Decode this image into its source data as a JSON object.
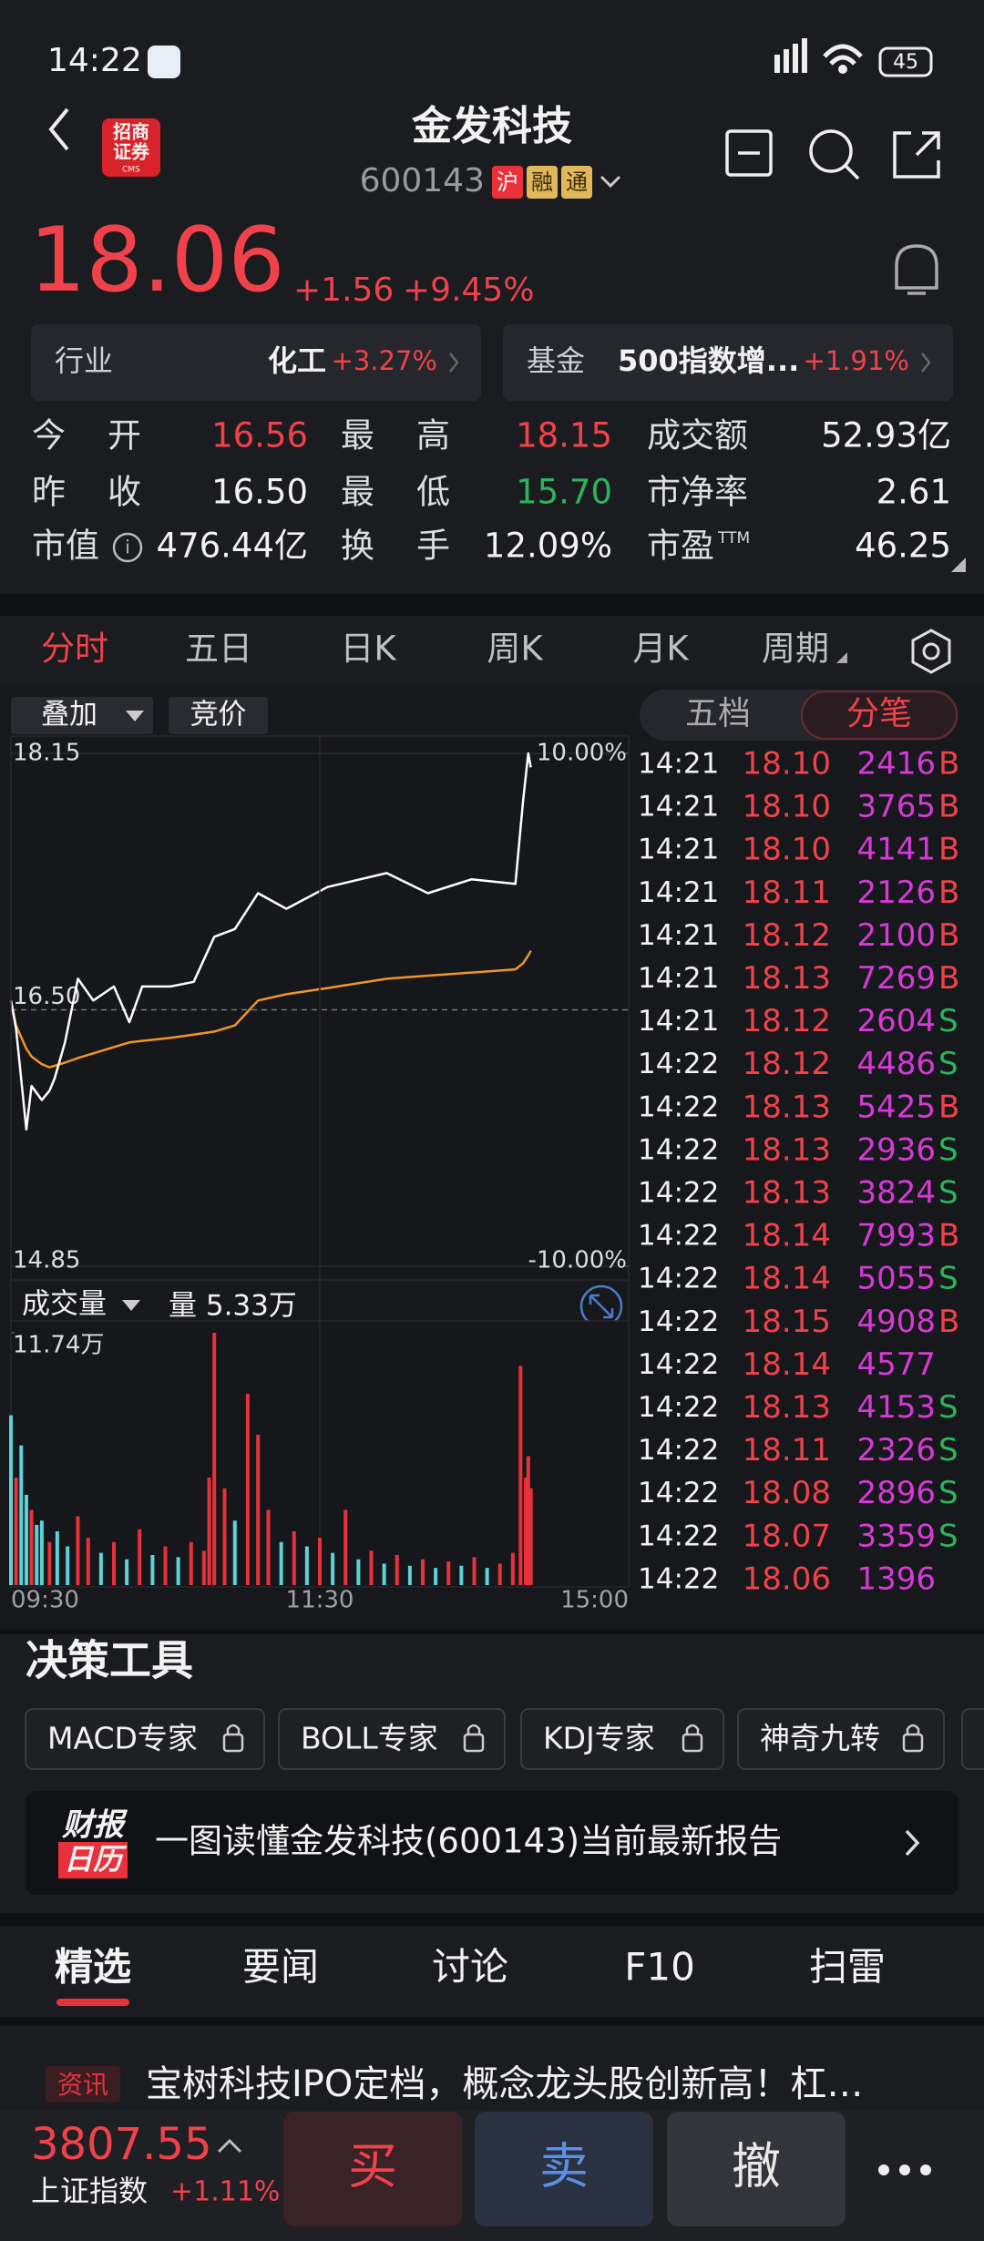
{
  "status_bar": {
    "time": "14:22",
    "battery": "45"
  },
  "header": {
    "broker_logo": [
      "招商",
      "证券"
    ],
    "broker_logo_sub": "CMS",
    "title": "金发科技",
    "code": "600143",
    "tags": [
      "沪",
      "融",
      "通"
    ]
  },
  "quote": {
    "price": "18.06",
    "change": "+1.56",
    "change_pct": "+9.45%"
  },
  "sectors": [
    {
      "label": "行业",
      "name": "化工",
      "change": "+3.27%"
    },
    {
      "label": "基金",
      "name": "500指数增...",
      "change": "+1.91%"
    }
  ],
  "stats": [
    [
      {
        "label": "今 开",
        "value": "16.56",
        "color": "#f0424a"
      },
      {
        "label": "最 高",
        "value": "18.15",
        "color": "#f0424a"
      },
      {
        "label": "成交额",
        "value": "52.93亿",
        "color": "#f2f2f2"
      }
    ],
    [
      {
        "label": "昨 收",
        "value": "16.50",
        "color": "#f2f2f2"
      },
      {
        "label": "最 低",
        "value": "15.70",
        "color": "#2bb55a"
      },
      {
        "label": "市净率",
        "value": "2.61",
        "color": "#f2f2f2"
      }
    ],
    [
      {
        "label": "市值",
        "value": "476.44亿",
        "color": "#f2f2f2"
      },
      {
        "label": "换 手",
        "value": "12.09%",
        "color": "#f2f2f2"
      },
      {
        "label": "市盈",
        "sup": "TTM",
        "value": "46.25",
        "color": "#f2f2f2"
      }
    ]
  ],
  "chart_tabs": [
    "分时",
    "五日",
    "日K",
    "周K",
    "月K",
    "周期"
  ],
  "chart_controls": [
    "叠加",
    "竞价"
  ],
  "trade_tabs": [
    "五档",
    "分笔"
  ],
  "chart_data": [
    {
      "type": "line",
      "x": [
        0,
        2,
        6,
        8,
        12,
        15,
        17,
        21,
        26,
        32,
        40,
        46,
        51,
        62,
        71,
        79,
        87,
        96,
        107,
        123,
        146,
        162,
        179,
        196,
        199,
        201,
        202
      ],
      "series": [
        {
          "color": "#ffffff",
          "values": [
            16.56,
            16.38,
            15.73,
            16.01,
            15.92,
            15.98,
            16.06,
            16.29,
            16.7,
            16.56,
            16.65,
            16.42,
            16.65,
            16.65,
            16.68,
            16.97,
            17.02,
            17.25,
            17.15,
            17.29,
            17.38,
            17.25,
            17.34,
            17.31,
            17.85,
            18.15,
            18.06
          ]
        },
        {
          "color": "#f0952a",
          "values": [
            16.56,
            16.4,
            16.25,
            16.2,
            16.15,
            16.13,
            16.14,
            16.16,
            16.19,
            16.22,
            16.26,
            16.29,
            16.3,
            16.32,
            16.34,
            16.36,
            16.4,
            16.56,
            16.6,
            16.64,
            16.7,
            16.72,
            16.74,
            16.76,
            16.8,
            16.85,
            16.88
          ]
        }
      ],
      "xlim": [
        0,
        240
      ],
      "ylim": [
        14.85,
        18.15
      ],
      "yticks": [
        18.15,
        {
          "value": 16.5,
          "label": "16.50"
        },
        14.85
      ],
      "y2lim": [
        -10,
        10
      ],
      "y2ticks": [
        {
          "value": 10,
          "label": "10.00%"
        },
        {
          "value": -10,
          "label": "-10.00%"
        }
      ]
    },
    {
      "type": "bar",
      "title": "成交量",
      "subtitle": "量 5.33万",
      "x": [
        0,
        2,
        4,
        6,
        8,
        10,
        12,
        15,
        18,
        22,
        26,
        30,
        35,
        40,
        45,
        50,
        55,
        60,
        65,
        70,
        75,
        77,
        79,
        83,
        87,
        92,
        96,
        100,
        105,
        110,
        115,
        120,
        125,
        130,
        135,
        140,
        145,
        150,
        155,
        160,
        165,
        170,
        175,
        180,
        185,
        190,
        195,
        198,
        200,
        201,
        202
      ],
      "values": [
        7.9,
        5.0,
        6.5,
        4.2,
        3.5,
        2.8,
        3.0,
        2.0,
        2.5,
        1.8,
        3.2,
        2.2,
        1.5,
        2.0,
        1.2,
        2.6,
        1.4,
        1.8,
        1.3,
        2.0,
        1.6,
        5.0,
        11.74,
        4.5,
        3.0,
        8.9,
        7.0,
        3.5,
        2.0,
        2.5,
        1.8,
        2.2,
        1.5,
        3.5,
        1.2,
        1.6,
        1.0,
        1.4,
        0.9,
        1.2,
        0.8,
        1.1,
        0.9,
        1.3,
        0.8,
        1.0,
        1.5,
        10.2,
        5.0,
        6.0,
        4.5
      ],
      "colors": [
        "#5bd3d8",
        "#e8313a",
        "#5bd3d8",
        "#5bd3d8",
        "#e8313a",
        "#5bd3d8",
        "#5bd3d8",
        "#e8313a",
        "#5bd3d8",
        "#5bd3d8",
        "#e8313a",
        "#e8313a",
        "#5bd3d8",
        "#e8313a",
        "#5bd3d8",
        "#e8313a",
        "#5bd3d8",
        "#e8313a",
        "#5bd3d8",
        "#e8313a",
        "#e8313a",
        "#e8313a",
        "#e8313a",
        "#e8313a",
        "#5bd3d8",
        "#e8313a",
        "#e8313a",
        "#e8313a",
        "#5bd3d8",
        "#e8313a",
        "#5bd3d8",
        "#e8313a",
        "#5bd3d8",
        "#e8313a",
        "#5bd3d8",
        "#e8313a",
        "#5bd3d8",
        "#e8313a",
        "#5bd3d8",
        "#e8313a",
        "#5bd3d8",
        "#e8313a",
        "#5bd3d8",
        "#e8313a",
        "#5bd3d8",
        "#e8313a",
        "#e8313a",
        "#e8313a",
        "#e8313a",
        "#e8313a",
        "#e8313a"
      ],
      "xlim": [
        0,
        240
      ],
      "xticks": [
        {
          "value": 0,
          "label": "09:30"
        },
        {
          "value": 120,
          "label": "11:30"
        },
        {
          "value": 240,
          "label": "15:00"
        }
      ],
      "ylim": [
        0,
        11.74
      ],
      "yticks": [
        {
          "value": 11.74,
          "label": "11.74万"
        }
      ]
    }
  ],
  "trades": [
    {
      "time": "14:21",
      "price": "18.10",
      "volume": "2416",
      "side": "B"
    },
    {
      "time": "14:21",
      "price": "18.10",
      "volume": "3765",
      "side": "B"
    },
    {
      "time": "14:21",
      "price": "18.10",
      "volume": "4141",
      "side": "B"
    },
    {
      "time": "14:21",
      "price": "18.11",
      "volume": "2126",
      "side": "B"
    },
    {
      "time": "14:21",
      "price": "18.12",
      "volume": "2100",
      "side": "B"
    },
    {
      "time": "14:21",
      "price": "18.13",
      "volume": "7269",
      "side": "B"
    },
    {
      "time": "14:21",
      "price": "18.12",
      "volume": "2604",
      "side": "S"
    },
    {
      "time": "14:22",
      "price": "18.12",
      "volume": "4486",
      "side": "S"
    },
    {
      "time": "14:22",
      "price": "18.13",
      "volume": "5425",
      "side": "B"
    },
    {
      "time": "14:22",
      "price": "18.13",
      "volume": "2936",
      "side": "S"
    },
    {
      "time": "14:22",
      "price": "18.13",
      "volume": "3824",
      "side": "S"
    },
    {
      "time": "14:22",
      "price": "18.14",
      "volume": "7993",
      "side": "B"
    },
    {
      "time": "14:22",
      "price": "18.14",
      "volume": "5055",
      "side": "S"
    },
    {
      "time": "14:22",
      "price": "18.15",
      "volume": "4908",
      "side": "B"
    },
    {
      "time": "14:22",
      "price": "18.14",
      "volume": "4577"
    },
    {
      "time": "14:22",
      "price": "18.13",
      "volume": "4153",
      "side": "S"
    },
    {
      "time": "14:22",
      "price": "18.11",
      "volume": "2326",
      "side": "S"
    },
    {
      "time": "14:22",
      "price": "18.08",
      "volume": "2896",
      "side": "S"
    },
    {
      "time": "14:22",
      "price": "18.07",
      "volume": "3359",
      "side": "S"
    },
    {
      "time": "14:22",
      "price": "18.06",
      "volume": "1396"
    }
  ],
  "tools": {
    "title": "决策工具",
    "items": [
      "MACD专家",
      "BOLL专家",
      "KDJ专家",
      "神奇九转"
    ]
  },
  "banner": {
    "logo": [
      "财报",
      "日历"
    ],
    "text": "一图读懂金发科技(600143)当前最新报告"
  },
  "news_tabs": [
    "精选",
    "要闻",
    "讨论",
    "F10",
    "扫雷"
  ],
  "news": {
    "tag": "资讯",
    "headline": "宝树科技IPO定档，概念龙头股创新高！杠…"
  },
  "bottom_bar": {
    "index_value": "3807.55",
    "index_name": "上证指数",
    "index_change": "+1.11%",
    "actions": [
      "买",
      "卖",
      "撤"
    ]
  }
}
